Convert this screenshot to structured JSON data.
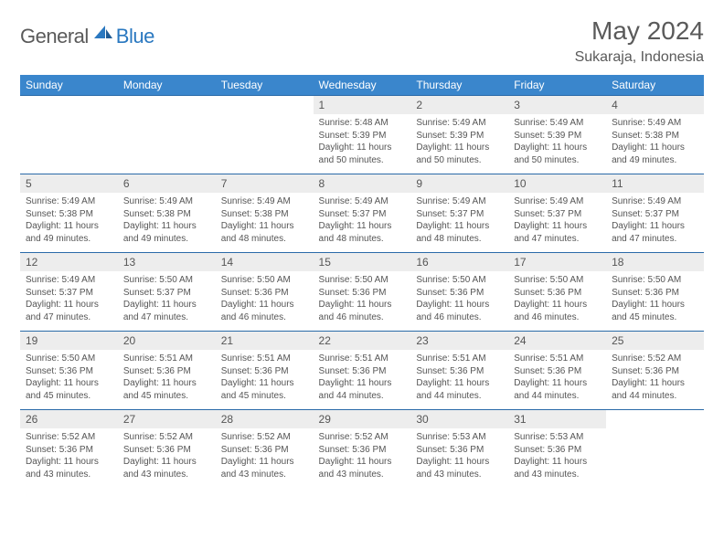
{
  "brand": {
    "part1": "General",
    "part2": "Blue"
  },
  "title": "May 2024",
  "location": "Sukaraja, Indonesia",
  "colors": {
    "header_bg": "#3a86cc",
    "header_text": "#ffffff",
    "row_separator": "#2a6aa8",
    "daynum_bg": "#ededed",
    "text": "#555555",
    "brand_gray": "#5a5a5a",
    "brand_blue": "#2a78c0",
    "page_bg": "#ffffff"
  },
  "weekdays": [
    "Sunday",
    "Monday",
    "Tuesday",
    "Wednesday",
    "Thursday",
    "Friday",
    "Saturday"
  ],
  "weeks": [
    [
      null,
      null,
      null,
      {
        "n": "1",
        "sr": "5:48 AM",
        "ss": "5:39 PM",
        "dl": "11 hours and 50 minutes."
      },
      {
        "n": "2",
        "sr": "5:49 AM",
        "ss": "5:39 PM",
        "dl": "11 hours and 50 minutes."
      },
      {
        "n": "3",
        "sr": "5:49 AM",
        "ss": "5:39 PM",
        "dl": "11 hours and 50 minutes."
      },
      {
        "n": "4",
        "sr": "5:49 AM",
        "ss": "5:38 PM",
        "dl": "11 hours and 49 minutes."
      }
    ],
    [
      {
        "n": "5",
        "sr": "5:49 AM",
        "ss": "5:38 PM",
        "dl": "11 hours and 49 minutes."
      },
      {
        "n": "6",
        "sr": "5:49 AM",
        "ss": "5:38 PM",
        "dl": "11 hours and 49 minutes."
      },
      {
        "n": "7",
        "sr": "5:49 AM",
        "ss": "5:38 PM",
        "dl": "11 hours and 48 minutes."
      },
      {
        "n": "8",
        "sr": "5:49 AM",
        "ss": "5:37 PM",
        "dl": "11 hours and 48 minutes."
      },
      {
        "n": "9",
        "sr": "5:49 AM",
        "ss": "5:37 PM",
        "dl": "11 hours and 48 minutes."
      },
      {
        "n": "10",
        "sr": "5:49 AM",
        "ss": "5:37 PM",
        "dl": "11 hours and 47 minutes."
      },
      {
        "n": "11",
        "sr": "5:49 AM",
        "ss": "5:37 PM",
        "dl": "11 hours and 47 minutes."
      }
    ],
    [
      {
        "n": "12",
        "sr": "5:49 AM",
        "ss": "5:37 PM",
        "dl": "11 hours and 47 minutes."
      },
      {
        "n": "13",
        "sr": "5:50 AM",
        "ss": "5:37 PM",
        "dl": "11 hours and 47 minutes."
      },
      {
        "n": "14",
        "sr": "5:50 AM",
        "ss": "5:36 PM",
        "dl": "11 hours and 46 minutes."
      },
      {
        "n": "15",
        "sr": "5:50 AM",
        "ss": "5:36 PM",
        "dl": "11 hours and 46 minutes."
      },
      {
        "n": "16",
        "sr": "5:50 AM",
        "ss": "5:36 PM",
        "dl": "11 hours and 46 minutes."
      },
      {
        "n": "17",
        "sr": "5:50 AM",
        "ss": "5:36 PM",
        "dl": "11 hours and 46 minutes."
      },
      {
        "n": "18",
        "sr": "5:50 AM",
        "ss": "5:36 PM",
        "dl": "11 hours and 45 minutes."
      }
    ],
    [
      {
        "n": "19",
        "sr": "5:50 AM",
        "ss": "5:36 PM",
        "dl": "11 hours and 45 minutes."
      },
      {
        "n": "20",
        "sr": "5:51 AM",
        "ss": "5:36 PM",
        "dl": "11 hours and 45 minutes."
      },
      {
        "n": "21",
        "sr": "5:51 AM",
        "ss": "5:36 PM",
        "dl": "11 hours and 45 minutes."
      },
      {
        "n": "22",
        "sr": "5:51 AM",
        "ss": "5:36 PM",
        "dl": "11 hours and 44 minutes."
      },
      {
        "n": "23",
        "sr": "5:51 AM",
        "ss": "5:36 PM",
        "dl": "11 hours and 44 minutes."
      },
      {
        "n": "24",
        "sr": "5:51 AM",
        "ss": "5:36 PM",
        "dl": "11 hours and 44 minutes."
      },
      {
        "n": "25",
        "sr": "5:52 AM",
        "ss": "5:36 PM",
        "dl": "11 hours and 44 minutes."
      }
    ],
    [
      {
        "n": "26",
        "sr": "5:52 AM",
        "ss": "5:36 PM",
        "dl": "11 hours and 43 minutes."
      },
      {
        "n": "27",
        "sr": "5:52 AM",
        "ss": "5:36 PM",
        "dl": "11 hours and 43 minutes."
      },
      {
        "n": "28",
        "sr": "5:52 AM",
        "ss": "5:36 PM",
        "dl": "11 hours and 43 minutes."
      },
      {
        "n": "29",
        "sr": "5:52 AM",
        "ss": "5:36 PM",
        "dl": "11 hours and 43 minutes."
      },
      {
        "n": "30",
        "sr": "5:53 AM",
        "ss": "5:36 PM",
        "dl": "11 hours and 43 minutes."
      },
      {
        "n": "31",
        "sr": "5:53 AM",
        "ss": "5:36 PM",
        "dl": "11 hours and 43 minutes."
      },
      null
    ]
  ],
  "labels": {
    "sunrise": "Sunrise: ",
    "sunset": "Sunset: ",
    "daylight": "Daylight: "
  }
}
